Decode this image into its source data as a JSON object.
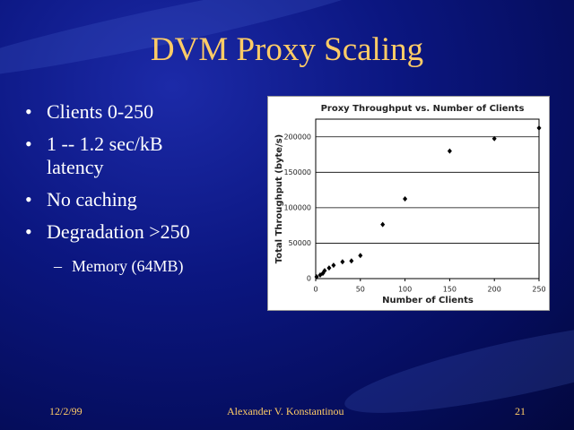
{
  "slide": {
    "title": "DVM Proxy Scaling",
    "bullets": [
      "Clients 0-250",
      "1 -- 1.2 sec/kB latency",
      "No caching",
      "Degradation >250"
    ],
    "sub_bullets": [
      "Memory (64MB)"
    ],
    "footer": {
      "date": "12/2/99",
      "author": "Alexander V. Konstantinou",
      "page": "21"
    }
  },
  "chart_data": {
    "type": "scatter",
    "title": "Proxy Throughput vs. Number of Clients",
    "x_label": "Number of Clients",
    "y_label": "Total Throughput (byte/s)",
    "series": [
      {
        "name": "Throughput",
        "color": "#000000",
        "x": [
          1,
          5,
          8,
          10,
          15,
          20,
          30,
          40,
          50,
          75,
          100,
          150,
          200,
          250
        ],
        "values": [
          2500,
          5000,
          7500,
          11250,
          15000,
          18750,
          23750,
          25000,
          32500,
          76250,
          112500,
          180000,
          197500,
          212500
        ]
      }
    ],
    "xlim": [
      0,
      250
    ],
    "xticks": [
      0,
      50,
      100,
      150,
      200,
      250
    ],
    "ylim": [
      0,
      225000
    ],
    "yticks": [
      0,
      50000,
      100000,
      150000,
      200000
    ],
    "grid": true
  }
}
